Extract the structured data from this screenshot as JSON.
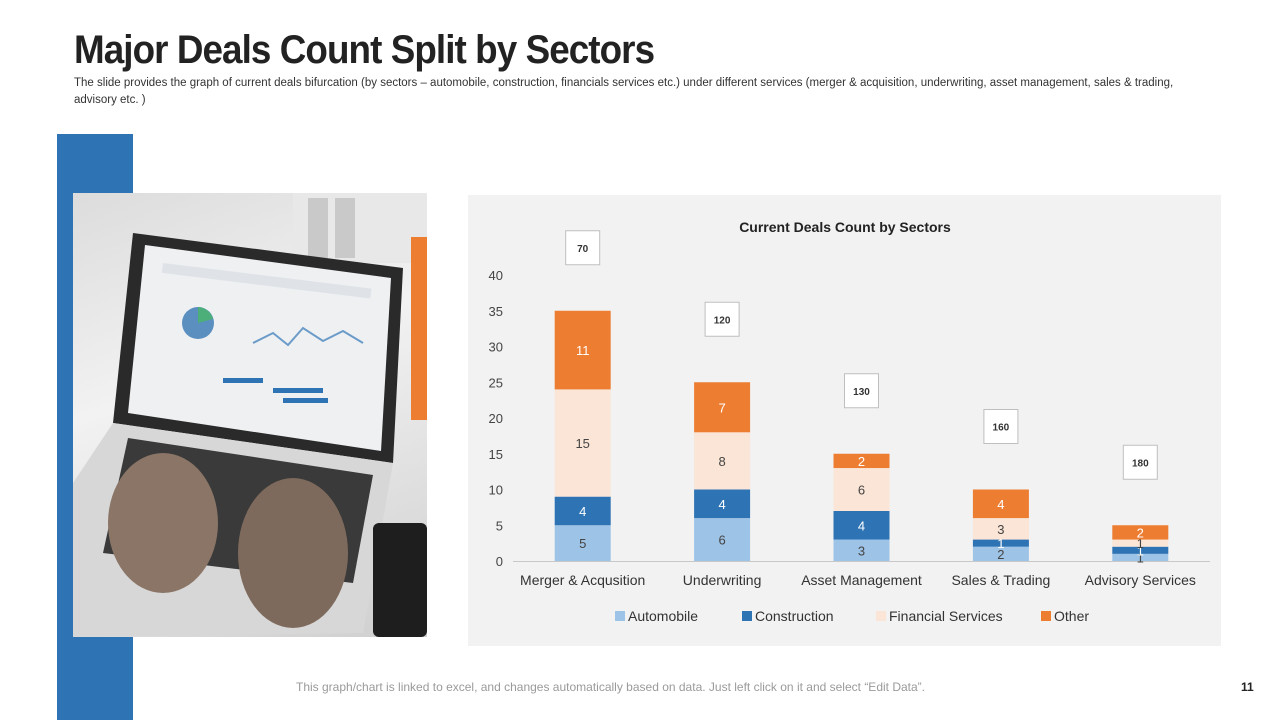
{
  "slide": {
    "title": "Major Deals Count Split by Sectors",
    "subtitle": "The slide provides the graph of current deals bifurcation (by sectors – automobile, construction, financials services etc.) under different services (merger  & acquisition, underwriting, asset management,  sales & trading, advisory etc. )",
    "footer_note": "This graph/chart is linked to excel, and changes automatically based on data. Just left click on it and select “Edit Data”.",
    "page_number": "11"
  },
  "colors": {
    "automobile": "#9dc3e6",
    "construction": "#2e74b5",
    "financial": "#fbe5d6",
    "other": "#ed7d31",
    "accent_blue": "#2e74b5",
    "accent_orange": "#ed7d31"
  },
  "chart_data": {
    "type": "bar",
    "stacked": true,
    "title": "Current Deals Count by Sectors",
    "categories": [
      "Merger & Acqusition",
      "Underwriting",
      "Asset Management",
      "Sales & Trading",
      "Advisory Services"
    ],
    "series": [
      {
        "name": "Automobile",
        "values": [
          5,
          6,
          3,
          2,
          1
        ],
        "labels": [
          "5",
          "6",
          "3",
          "2",
          "1"
        ]
      },
      {
        "name": "Construction",
        "values": [
          4,
          4,
          4,
          1,
          1
        ],
        "labels": [
          "4",
          "4",
          "4",
          "1",
          "1"
        ]
      },
      {
        "name": "Financial Services",
        "values": [
          15,
          8,
          6,
          3,
          1
        ],
        "labels": [
          "15",
          "8",
          "6",
          "3",
          "1"
        ]
      },
      {
        "name": "Other",
        "values": [
          11,
          7,
          2,
          4,
          2
        ],
        "labels": [
          "11",
          "7",
          "2",
          "4",
          "2"
        ]
      }
    ],
    "callouts": [
      "70",
      "120",
      "130",
      "160",
      "180"
    ],
    "ylim": [
      0,
      40
    ],
    "yticks": [
      "0",
      "5",
      "10",
      "15",
      "20",
      "25",
      "30",
      "35",
      "40"
    ],
    "xlabel": "",
    "ylabel": "",
    "legend_position": "bottom"
  }
}
